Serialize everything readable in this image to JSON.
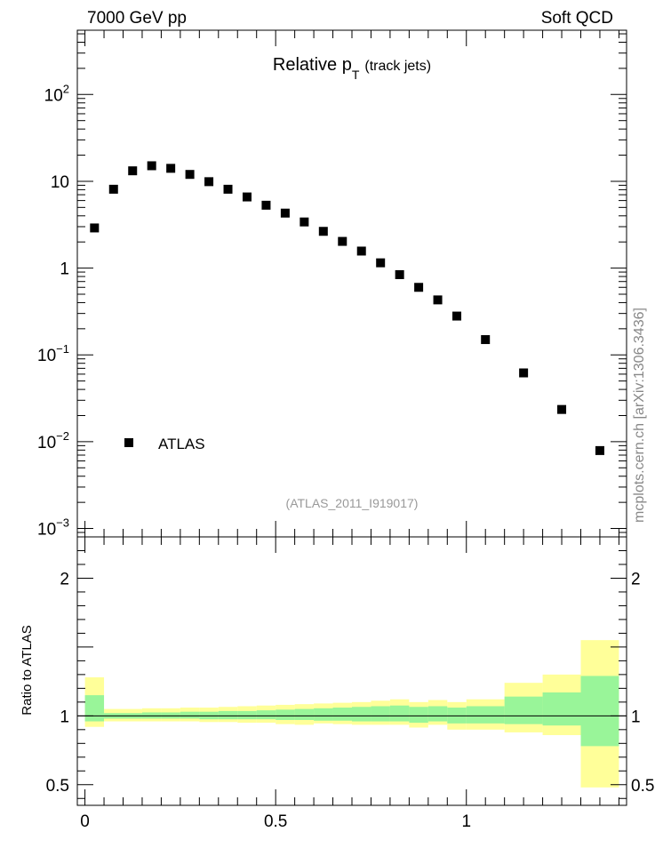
{
  "header": {
    "left": "7000 GeV pp",
    "right": "Soft QCD"
  },
  "side_label": "mcplots.cern.ch [arXiv:1306.3436]",
  "chart_data": [
    {
      "type": "scatter",
      "title_main": "Relative p",
      "title_sub": "T",
      "title_suffix": "(track jets)",
      "watermark": "(ATLAS_2011_I919017)",
      "yscale": "log",
      "xlim": [
        -0.02,
        1.42
      ],
      "ylim": [
        0.0008,
        550
      ],
      "legend_position": "bottom-left",
      "yticks": [
        {
          "v": 0.001,
          "base": "10",
          "exp": "−3"
        },
        {
          "v": 0.01,
          "base": "10",
          "exp": "−2"
        },
        {
          "v": 0.1,
          "base": "10",
          "exp": "−1"
        },
        {
          "v": 1,
          "base": "1",
          "exp": ""
        },
        {
          "v": 10,
          "base": "10",
          "exp": ""
        },
        {
          "v": 100,
          "base": "10",
          "exp": "2"
        }
      ],
      "series": [
        {
          "name": "ATLAS",
          "color": "#000000",
          "x": [
            0.025,
            0.075,
            0.125,
            0.175,
            0.225,
            0.275,
            0.325,
            0.375,
            0.425,
            0.475,
            0.525,
            0.575,
            0.625,
            0.675,
            0.725,
            0.775,
            0.825,
            0.875,
            0.925,
            0.975,
            1.05,
            1.15,
            1.25,
            1.35
          ],
          "y": [
            2.9,
            8.1,
            13.2,
            15.1,
            14.1,
            12.0,
            9.9,
            8.1,
            6.6,
            5.3,
            4.3,
            3.4,
            2.65,
            2.03,
            1.57,
            1.15,
            0.84,
            0.6,
            0.43,
            0.28,
            0.15,
            0.062,
            0.0235,
            0.0079
          ]
        }
      ]
    },
    {
      "type": "area",
      "ylabel": "Ratio to ATLAS",
      "xlim": [
        -0.02,
        1.42
      ],
      "ylim": [
        0.35,
        2.3
      ],
      "xticks": [
        0,
        0.5,
        1
      ],
      "xtick_labels": [
        "0",
        "0.5",
        "1"
      ],
      "yticks": [
        0.5,
        1,
        2
      ],
      "ytick_labels": [
        "0.5",
        "1",
        "2"
      ],
      "reference": 1,
      "band_colors": {
        "outer": "#ffff99",
        "inner": "#99f599"
      },
      "bins": [
        {
          "lo": 0.0,
          "hi": 0.05,
          "y_lo": 0.92,
          "y_hi": 1.28,
          "g_lo": 0.96,
          "g_hi": 1.15
        },
        {
          "lo": 0.05,
          "hi": 0.1,
          "y_lo": 0.96,
          "y_hi": 1.05,
          "g_lo": 0.98,
          "g_hi": 1.02
        },
        {
          "lo": 0.1,
          "hi": 0.15,
          "y_lo": 0.96,
          "y_hi": 1.05,
          "g_lo": 0.98,
          "g_hi": 1.02
        },
        {
          "lo": 0.15,
          "hi": 0.2,
          "y_lo": 0.96,
          "y_hi": 1.055,
          "g_lo": 0.98,
          "g_hi": 1.025
        },
        {
          "lo": 0.2,
          "hi": 0.25,
          "y_lo": 0.96,
          "y_hi": 1.055,
          "g_lo": 0.98,
          "g_hi": 1.025
        },
        {
          "lo": 0.25,
          "hi": 0.3,
          "y_lo": 0.96,
          "y_hi": 1.06,
          "g_lo": 0.98,
          "g_hi": 1.03
        },
        {
          "lo": 0.3,
          "hi": 0.35,
          "y_lo": 0.955,
          "y_hi": 1.06,
          "g_lo": 0.975,
          "g_hi": 1.03
        },
        {
          "lo": 0.35,
          "hi": 0.4,
          "y_lo": 0.955,
          "y_hi": 1.065,
          "g_lo": 0.975,
          "g_hi": 1.035
        },
        {
          "lo": 0.4,
          "hi": 0.45,
          "y_lo": 0.95,
          "y_hi": 1.07,
          "g_lo": 0.975,
          "g_hi": 1.035
        },
        {
          "lo": 0.45,
          "hi": 0.5,
          "y_lo": 0.95,
          "y_hi": 1.075,
          "g_lo": 0.975,
          "g_hi": 1.04
        },
        {
          "lo": 0.5,
          "hi": 0.55,
          "y_lo": 0.94,
          "y_hi": 1.08,
          "g_lo": 0.97,
          "g_hi": 1.045
        },
        {
          "lo": 0.55,
          "hi": 0.6,
          "y_lo": 0.935,
          "y_hi": 1.085,
          "g_lo": 0.97,
          "g_hi": 1.05
        },
        {
          "lo": 0.6,
          "hi": 0.65,
          "y_lo": 0.945,
          "y_hi": 1.09,
          "g_lo": 0.965,
          "g_hi": 1.055
        },
        {
          "lo": 0.65,
          "hi": 0.7,
          "y_lo": 0.94,
          "y_hi": 1.095,
          "g_lo": 0.965,
          "g_hi": 1.06
        },
        {
          "lo": 0.7,
          "hi": 0.75,
          "y_lo": 0.935,
          "y_hi": 1.1,
          "g_lo": 0.96,
          "g_hi": 1.065
        },
        {
          "lo": 0.75,
          "hi": 0.8,
          "y_lo": 0.935,
          "y_hi": 1.11,
          "g_lo": 0.96,
          "g_hi": 1.07
        },
        {
          "lo": 0.8,
          "hi": 0.85,
          "y_lo": 0.935,
          "y_hi": 1.12,
          "g_lo": 0.96,
          "g_hi": 1.075
        },
        {
          "lo": 0.85,
          "hi": 0.9,
          "y_lo": 0.915,
          "y_hi": 1.1,
          "g_lo": 0.95,
          "g_hi": 1.065
        },
        {
          "lo": 0.9,
          "hi": 0.95,
          "y_lo": 0.935,
          "y_hi": 1.115,
          "g_lo": 0.96,
          "g_hi": 1.07
        },
        {
          "lo": 0.95,
          "hi": 1.0,
          "y_lo": 0.9,
          "y_hi": 1.1,
          "g_lo": 0.945,
          "g_hi": 1.06
        },
        {
          "lo": 1.0,
          "hi": 1.1,
          "y_lo": 0.9,
          "y_hi": 1.12,
          "g_lo": 0.945,
          "g_hi": 1.07
        },
        {
          "lo": 1.1,
          "hi": 1.2,
          "y_lo": 0.88,
          "y_hi": 1.24,
          "g_lo": 0.94,
          "g_hi": 1.14
        },
        {
          "lo": 1.2,
          "hi": 1.3,
          "y_lo": 0.86,
          "y_hi": 1.3,
          "g_lo": 0.93,
          "g_hi": 1.17
        },
        {
          "lo": 1.3,
          "hi": 1.4,
          "y_lo": 0.48,
          "y_hi": 1.55,
          "g_lo": 0.78,
          "g_hi": 1.29
        }
      ]
    }
  ]
}
